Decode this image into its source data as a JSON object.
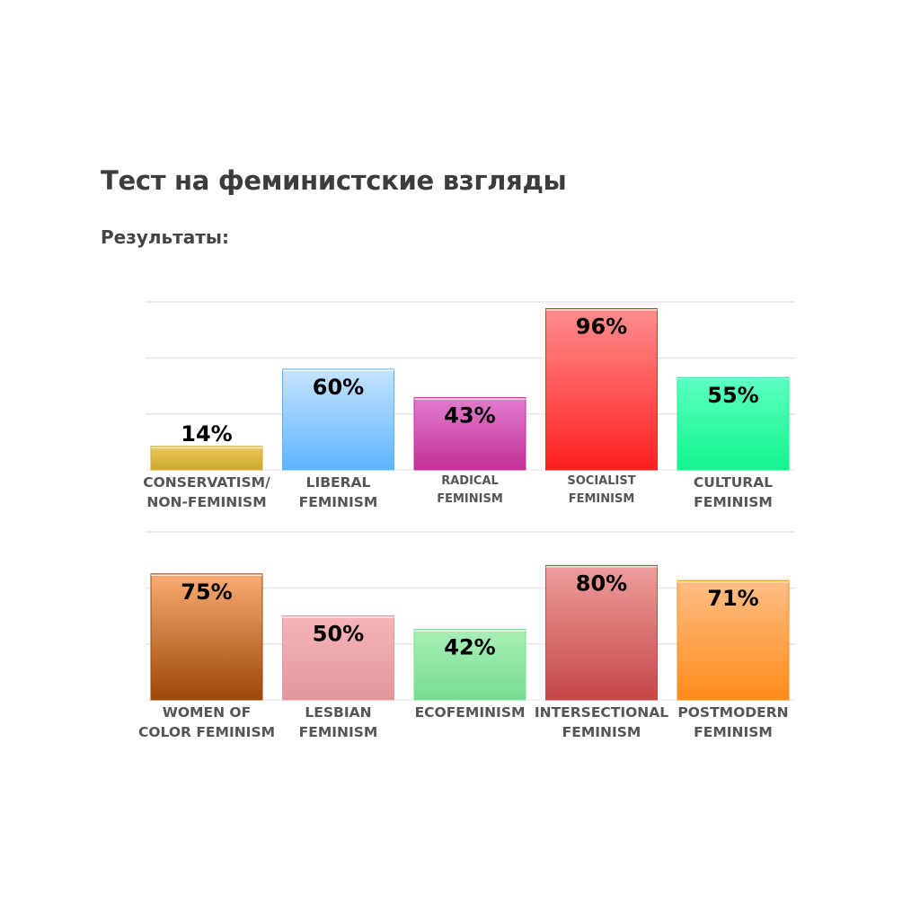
{
  "header": {
    "title": "Тест на феминистские взгляды",
    "subtitle": "Результаты:"
  },
  "chart_data": [
    {
      "type": "bar",
      "ylim": [
        0,
        100
      ],
      "grid": true,
      "categories": [
        [
          "CONSERVATISM/",
          "NON-FEMINISM"
        ],
        [
          "LIBERAL",
          "FEMINISM"
        ],
        [
          "RADICAL",
          "FEMINISM"
        ],
        [
          "SOCIALIST",
          "FEMINISM"
        ],
        [
          "CULTURAL",
          "FEMINISM"
        ]
      ],
      "values": [
        14,
        60,
        43,
        96,
        55
      ],
      "labels": [
        "14%",
        "60%",
        "43%",
        "96%",
        "55%"
      ],
      "colors": [
        [
          "#e9c85a",
          "#cfa92e"
        ],
        [
          "#c6e4ff",
          "#5cb4ff"
        ],
        [
          "#e27dcd",
          "#c22f98"
        ],
        [
          "#ff8d8d",
          "#ff2020"
        ],
        [
          "#5dffc1",
          "#10f58e"
        ]
      ],
      "small_label_indices": [
        2,
        3
      ]
    },
    {
      "type": "bar",
      "ylim": [
        0,
        100
      ],
      "grid": true,
      "categories": [
        [
          "WOMEN OF",
          "COLOR FEMINISM"
        ],
        [
          "LESBIAN",
          "FEMINISM"
        ],
        [
          "ECOFEMINISM"
        ],
        [
          "INTERSECTIONAL",
          "FEMINISM"
        ],
        [
          "POSTMODERN",
          "FEMINISM"
        ]
      ],
      "values": [
        75,
        50,
        42,
        80,
        71
      ],
      "labels": [
        "75%",
        "50%",
        "42%",
        "80%",
        "71%"
      ],
      "colors": [
        [
          "#fbac74",
          "#9b4708"
        ],
        [
          "#f7b5b8",
          "#e0979d"
        ],
        [
          "#a8f0b7",
          "#78dc92"
        ],
        [
          "#ee9d9d",
          "#c54747"
        ],
        [
          "#ffbe85",
          "#ff8b1a"
        ]
      ],
      "small_label_indices": []
    }
  ]
}
